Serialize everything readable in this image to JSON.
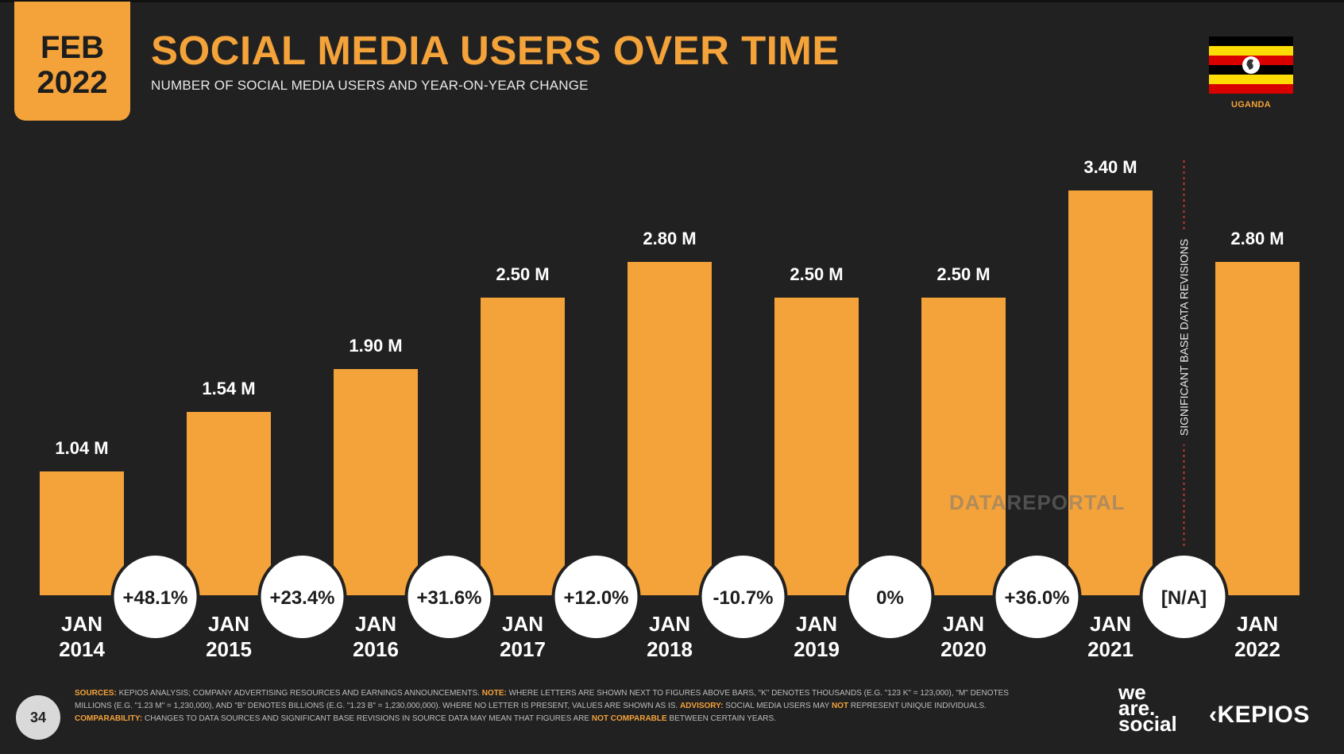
{
  "header": {
    "badge_month": "FEB",
    "badge_year": "2022",
    "title": "SOCIAL MEDIA USERS OVER TIME",
    "subtitle": "NUMBER OF SOCIAL MEDIA USERS AND YEAR-ON-YEAR CHANGE",
    "country": "UGANDA"
  },
  "colors": {
    "accent": "#f4a23a",
    "background": "#212121",
    "circle": "#ffffff",
    "divider": "#c0392b"
  },
  "chart_data": {
    "type": "bar",
    "categories": [
      [
        "JAN",
        "2014"
      ],
      [
        "JAN",
        "2015"
      ],
      [
        "JAN",
        "2016"
      ],
      [
        "JAN",
        "2017"
      ],
      [
        "JAN",
        "2018"
      ],
      [
        "JAN",
        "2019"
      ],
      [
        "JAN",
        "2020"
      ],
      [
        "JAN",
        "2021"
      ],
      [
        "JAN",
        "2022"
      ]
    ],
    "values": [
      1.04,
      1.54,
      1.9,
      2.5,
      2.8,
      2.5,
      2.5,
      3.4,
      2.8
    ],
    "value_labels": [
      "1.04 M",
      "1.54 M",
      "1.90 M",
      "2.50 M",
      "2.80 M",
      "2.50 M",
      "2.50 M",
      "3.40 M",
      "2.80 M"
    ],
    "yoy_changes": [
      "+48.1%",
      "+23.4%",
      "+31.6%",
      "+12.0%",
      "-10.7%",
      "0%",
      "+36.0%",
      "[N/A]"
    ],
    "ylim": [
      0,
      3.4
    ],
    "divider_after_index": 7,
    "divider_label": "SIGNIFICANT BASE DATA REVISIONS",
    "grid": false
  },
  "watermark": "DATAREPORTAL",
  "footer": {
    "sources_label": "SOURCES:",
    "sources_text": " KEPIOS ANALYSIS; COMPANY ADVERTISING RESOURCES AND EARNINGS ANNOUNCEMENTS. ",
    "note_label": "NOTE:",
    "note_text": " WHERE LETTERS ARE SHOWN NEXT TO FIGURES ABOVE BARS, \"K\" DENOTES THOUSANDS (E.G. \"123 K\" = 123,000), \"M\" DENOTES MILLIONS (E.G. \"1.23 M\" = 1,230,000), AND \"B\" DENOTES BILLIONS (E.G. \"1.23 B\" = 1,230,000,000). WHERE NO LETTER IS PRESENT, VALUES ARE SHOWN AS IS. ",
    "advisory_label": "ADVISORY:",
    "advisory_text_1": " SOCIAL MEDIA USERS MAY ",
    "advisory_not": "NOT",
    "advisory_text_2": " REPRESENT UNIQUE INDIVIDUALS. ",
    "comparability_label": "COMPARABILITY:",
    "comparability_text": " CHANGES TO DATA SOURCES AND SIGNIFICANT BASE REVISIONS IN SOURCE DATA MAY MEAN THAT FIGURES ARE ",
    "comparability_not": "NOT COMPARABLE",
    "comparability_text_2": " BETWEEN CERTAIN YEARS.",
    "page_number": "34"
  },
  "logos": {
    "was_line1": "we",
    "was_line2": "are.",
    "was_line3": "social",
    "kepios": "KEPIOS"
  }
}
